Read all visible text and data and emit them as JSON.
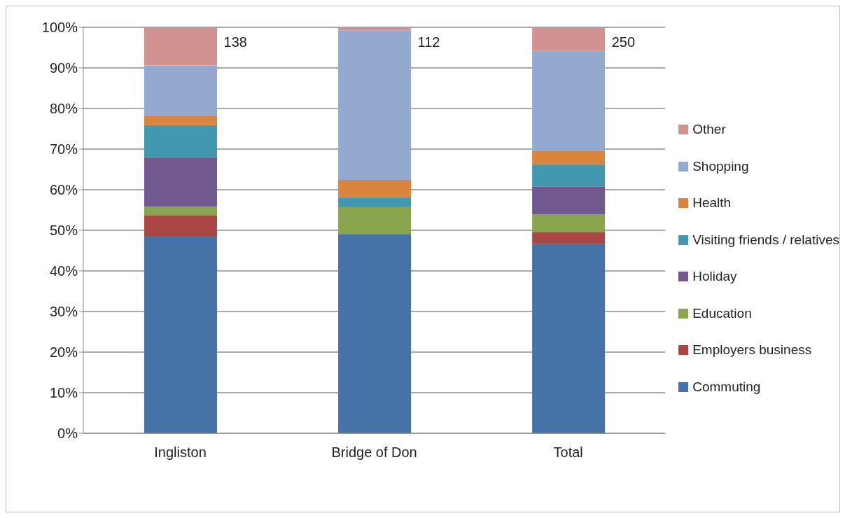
{
  "chart_data": {
    "type": "bar",
    "stacked": true,
    "categories": [
      "Ingliston",
      "Bridge of Don",
      "Total"
    ],
    "series": [
      {
        "name": "Commuting",
        "color": "#4572a7",
        "values": [
          48.6,
          49.1,
          46.7
        ]
      },
      {
        "name": "Employers business",
        "color": "#aa4643",
        "values": [
          5.0,
          0,
          2.8
        ]
      },
      {
        "name": "Education",
        "color": "#89a54e",
        "values": [
          2.2,
          6.6,
          4.4
        ]
      },
      {
        "name": "Holiday",
        "color": "#71588f",
        "values": [
          12.2,
          0,
          6.9
        ]
      },
      {
        "name": "Visiting friends / relatives",
        "color": "#4198af",
        "values": [
          7.9,
          2.5,
          5.5
        ]
      },
      {
        "name": "Health",
        "color": "#db843d",
        "values": [
          2.4,
          4.2,
          3.2
        ]
      },
      {
        "name": "Shopping",
        "color": "#93a9cf",
        "values": [
          12.3,
          36.8,
          24.7
        ]
      },
      {
        "name": "Other",
        "color": "#d19392",
        "values": [
          9.4,
          0.8,
          5.8
        ]
      }
    ],
    "ylim": [
      0,
      100
    ],
    "yticks": [
      {
        "value": 0,
        "label": "0%"
      },
      {
        "value": 10,
        "label": "10%"
      },
      {
        "value": 20,
        "label": "20%"
      },
      {
        "value": 30,
        "label": "30%"
      },
      {
        "value": 40,
        "label": "40%"
      },
      {
        "value": 50,
        "label": "50%"
      },
      {
        "value": 60,
        "label": "60%"
      },
      {
        "value": 70,
        "label": "70%"
      },
      {
        "value": 80,
        "label": "80%"
      },
      {
        "value": 90,
        "label": "90%"
      },
      {
        "value": 100,
        "label": "100%"
      }
    ],
    "grid": "y",
    "legend": "right",
    "annotations": [
      "138",
      "112",
      "250"
    ]
  }
}
